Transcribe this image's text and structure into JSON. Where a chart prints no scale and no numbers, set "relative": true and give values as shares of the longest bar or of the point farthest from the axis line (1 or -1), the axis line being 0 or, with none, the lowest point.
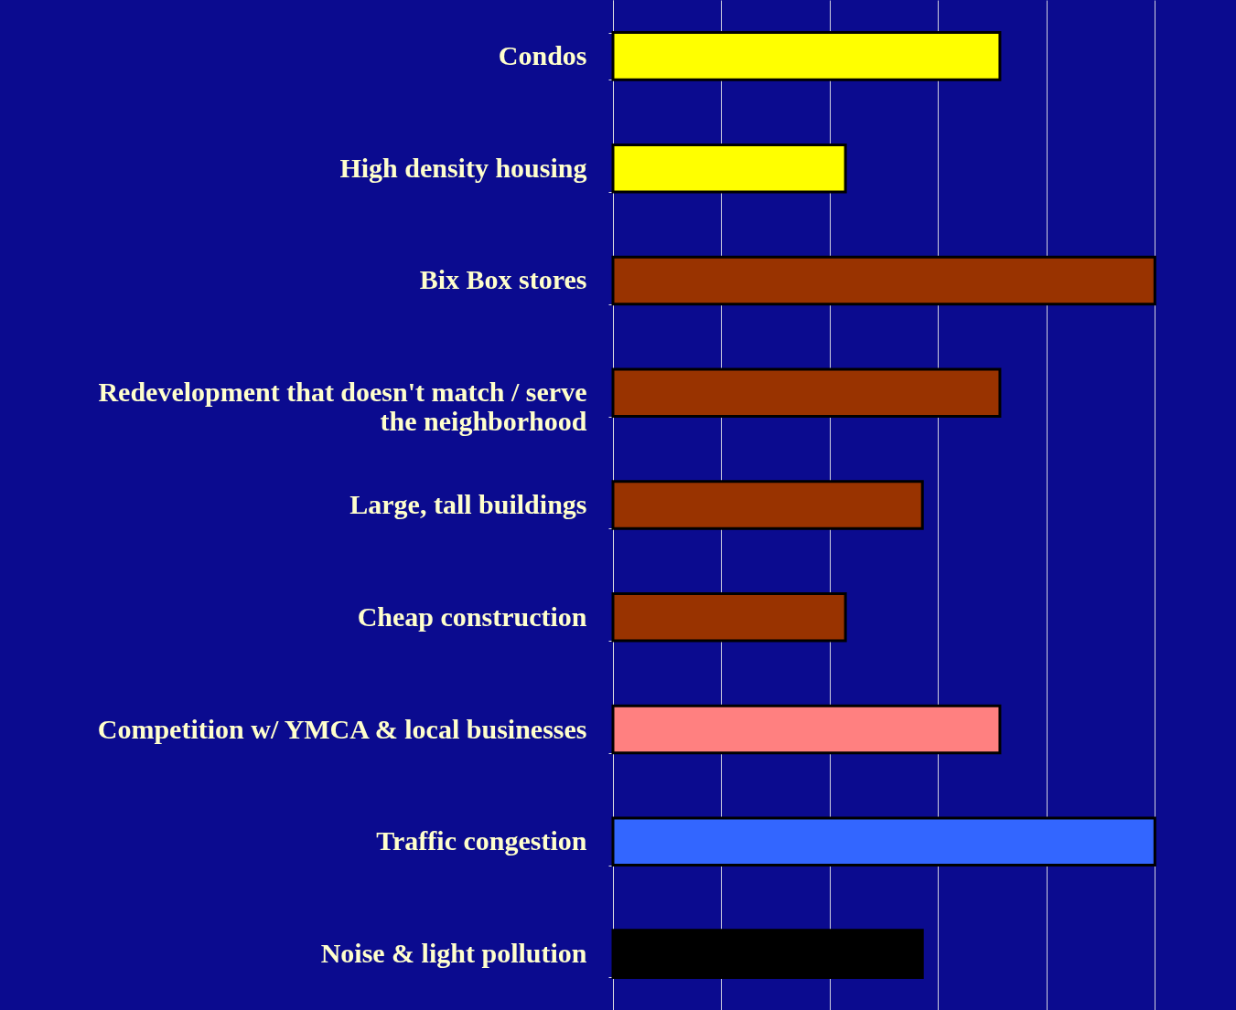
{
  "chart_data": {
    "type": "bar",
    "orientation": "horizontal",
    "relative": true,
    "grid": "x",
    "categories": [
      "Condos",
      "High density housing",
      "Bix Box stores",
      "Redevelopment that doesn't match / serve the neighborhood",
      "Large, tall buildings",
      "Cheap construction",
      "Competition w/ YMCA & local businesses",
      "Traffic congestion",
      "Noise & light pollution"
    ],
    "values": [
      0.714,
      0.429,
      1,
      0.714,
      0.571,
      0.429,
      0.714,
      1,
      0.571
    ],
    "colors": [
      "#ffff00",
      "#ffff00",
      "#993300",
      "#993300",
      "#993300",
      "#993300",
      "#ff8080",
      "#3366ff",
      "#000000"
    ]
  }
}
